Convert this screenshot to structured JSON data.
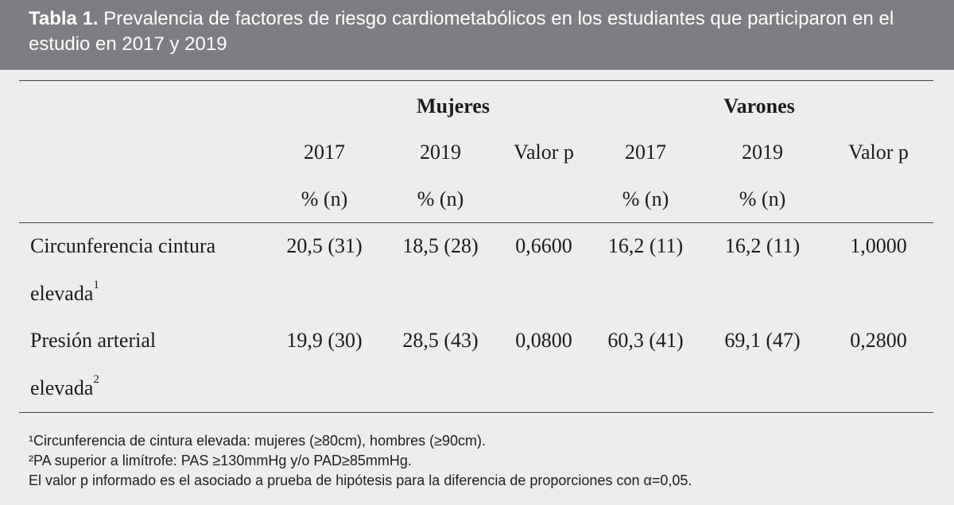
{
  "caption": {
    "label": "Tabla 1.",
    "text_line1": " Prevalencia de factores de riesgo cardiometabólicos en los estudiantes que participaron en el",
    "text_line2": "estudio en 2017 y 2019"
  },
  "table": {
    "groups": [
      "Mujeres",
      "Varones"
    ],
    "years": [
      "2017",
      "2019",
      "Valor p",
      "2017",
      "2019",
      "Valor p"
    ],
    "units": [
      "% (n)",
      "% (n)",
      "% (n)",
      "% (n)"
    ],
    "rows": [
      {
        "label_line1": "Circunferencia cintura",
        "label_line2": "elevada",
        "sup": "1",
        "values": [
          "20,5 (31)",
          "18,5 (28)",
          "0,6600",
          "16,2 (11)",
          "16,2 (11)",
          "1,0000"
        ]
      },
      {
        "label_line1": "Presión arterial",
        "label_line2": "elevada",
        "sup": "2",
        "values": [
          "19,9 (30)",
          "28,5 (43)",
          "0,0800",
          "60,3 (41)",
          "69,1 (47)",
          "0,2800"
        ]
      }
    ]
  },
  "notes": [
    "¹Circunferencia de cintura elevada: mujeres (≥80cm), hombres (≥90cm).",
    "²PA superior a limítrofe: PAS ≥130mmHg y/o PAD≥85mmHg.",
    "El valor p informado es el asociado a prueba de hipótesis para la diferencia de proporciones con α=0,05."
  ]
}
